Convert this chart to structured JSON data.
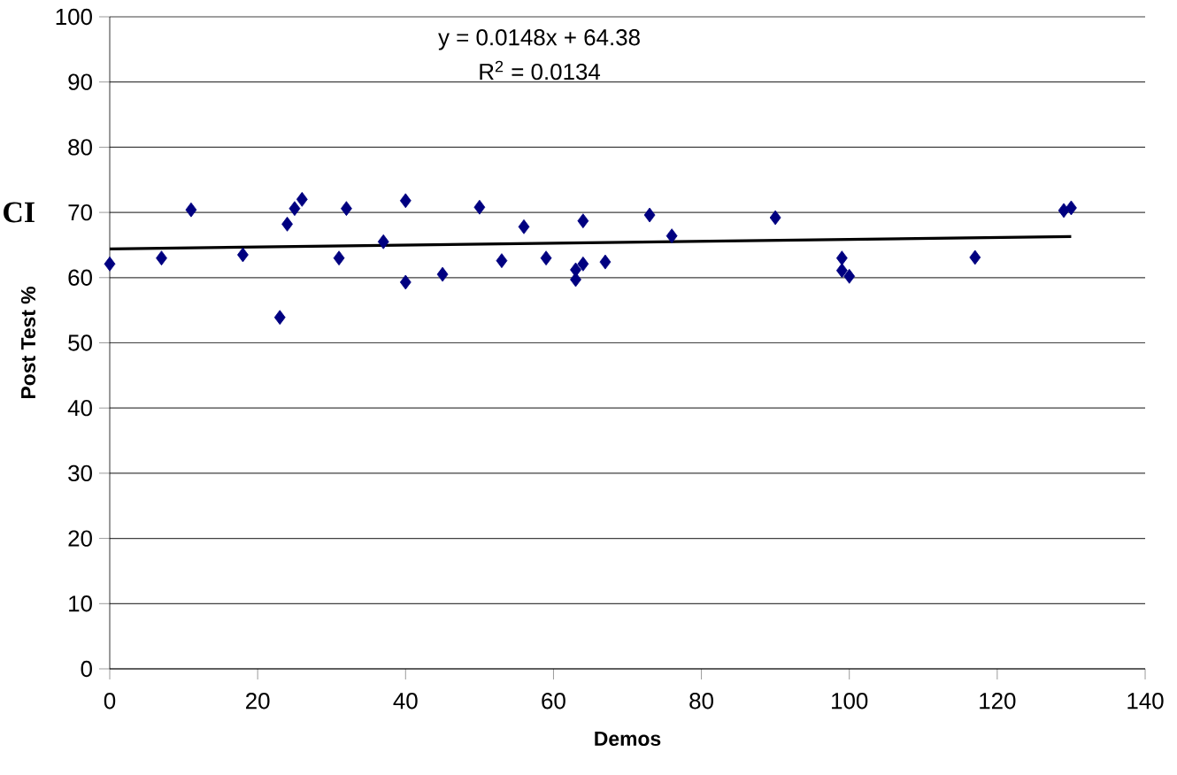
{
  "chart_data": {
    "type": "scatter",
    "xlabel": "Demos",
    "ylabel": "Post Test %",
    "annotations": [
      "y = 0.0148x + 64.38",
      "R$^{2}$ = 0.0134",
      "CI"
    ],
    "series": [
      {
        "color": "#000080",
        "x": [
          0,
          7,
          11,
          18,
          23,
          24,
          25,
          26,
          31,
          32,
          37,
          40,
          40,
          45,
          50,
          53,
          56,
          59,
          63,
          63,
          64,
          64,
          67,
          73,
          76,
          90,
          99,
          99,
          100,
          117,
          129,
          130
        ],
        "values": [
          62.1,
          63.0,
          70.4,
          63.5,
          53.9,
          68.2,
          70.6,
          72.0,
          63.0,
          70.6,
          65.5,
          71.8,
          59.3,
          60.5,
          70.8,
          62.6,
          67.8,
          63.0,
          61.2,
          59.7,
          62.1,
          68.7,
          62.4,
          69.6,
          66.4,
          69.2,
          63.0,
          61.1,
          60.2,
          63.1,
          70.3,
          70.7
        ]
      },
      {
        "type": "line",
        "color": "#000000",
        "marker": "none",
        "x": [
          0,
          130
        ],
        "values": [
          64.4,
          66.3
        ]
      }
    ],
    "xlim": [
      0,
      140
    ],
    "xticks": [
      0,
      20,
      40,
      60,
      80,
      100,
      120,
      140
    ],
    "ylim": [
      0,
      100
    ],
    "yticks": [
      0,
      10,
      20,
      30,
      40,
      50,
      60,
      70,
      80,
      90,
      100
    ],
    "grid": "y",
    "marker": "diamond"
  }
}
